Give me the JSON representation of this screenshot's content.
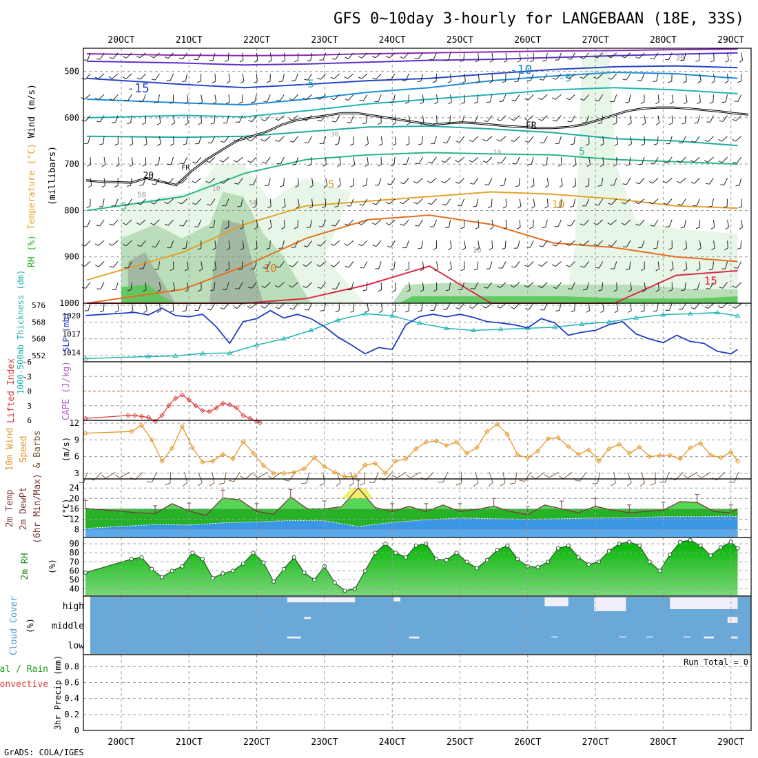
{
  "header": {
    "title": "GFS 0~10day 3-hourly for LANGEBAAN (18E, 33S)",
    "credit": "GrADS: COLA/IGES"
  },
  "x_axis": {
    "dates": [
      "20OCT",
      "21OCT",
      "22OCT",
      "23OCT",
      "24OCT",
      "25OCT",
      "26OCT",
      "27OCT",
      "28OCT",
      "29OCT"
    ]
  },
  "colors": {
    "frame": "#000000",
    "grid": "#999999",
    "rh_green_light": "#e6f5e6",
    "rh_green_mid": "#b4dcb4",
    "rh_gray": "#a0b4a0",
    "rh_green_dark": "#5ac85a",
    "slp": "#1e3cc8",
    "thickness": "#1eb4b4",
    "lifted_index": "#dc3c3c",
    "wind10": "#e69628",
    "barbs": "#7a5a3a",
    "temp_fill_light": "#56d656",
    "temp_fill_dark": "#1eaa1e",
    "temp_hot": "#f0f070",
    "dew_fill": "#3c96e6",
    "dew_fill_light": "#5aaaf0",
    "cloud_fill": "#6aa8d8",
    "cloud_clear": "#f2eef8",
    "rh2m_dark": "#00b400",
    "rh2m_light": "#78d878"
  },
  "chart_data": [
    {
      "type": "line",
      "panel": "upper-air",
      "ylabel_parts": [
        "RH (%)",
        "Temperature (°C)",
        "Wind (m/s)"
      ],
      "ylabel_sub": "(millibars)",
      "yticks": [
        500,
        600,
        700,
        800,
        900,
        1000
      ],
      "ylim": [
        450,
        1000
      ],
      "contour_labels": [
        "-15",
        "-10",
        "-5",
        "-5",
        "-5",
        "5",
        "5",
        "10",
        "10",
        "15",
        "20",
        "FR",
        "FR",
        "10",
        "30",
        "50",
        "50",
        "10",
        "10",
        "30"
      ],
      "freezing_level_mb": [
        735,
        738,
        739,
        740,
        730,
        738,
        745,
        715,
        690,
        670,
        650,
        640,
        630,
        615,
        605,
        600,
        595,
        590,
        590,
        595,
        600,
        605,
        610,
        615,
        612,
        610,
        612,
        615,
        618,
        620,
        622,
        622,
        620,
        615,
        605,
        595,
        585,
        580,
        578,
        578,
        580,
        583,
        586,
        590,
        593
      ]
    },
    {
      "type": "line",
      "panel": "slp-thickness",
      "ylabel_left": "1000-500mb Thickness (dm)",
      "ylabel_right": "SLP (mb)",
      "left_ticks": [
        552,
        560,
        568,
        576
      ],
      "right_ticks": [
        1014,
        1017,
        1020
      ],
      "series": [
        {
          "name": "SLP (mb)",
          "x": [
            0,
            0.2,
            0.4,
            0.6,
            0.8,
            1.0,
            1.2,
            1.4,
            1.6,
            1.8,
            2.0,
            2.2,
            2.4,
            2.6,
            2.8,
            3.0,
            3.2,
            3.4,
            3.6,
            3.8,
            4.0,
            4.2,
            4.4,
            4.6,
            4.8,
            5.0,
            5.2,
            5.4,
            5.6,
            5.8,
            6.0,
            6.2,
            6.4,
            6.6,
            6.8,
            7.0,
            7.2,
            7.4,
            7.6,
            7.8,
            8.0,
            8.2,
            8.4,
            8.6,
            8.8,
            9.0,
            9.1
          ],
          "values": [
            1020.0,
            1020.5,
            1020.1,
            1021.2,
            1020.0,
            1019.8,
            1020.2,
            1018.2,
            1015.5,
            1019.0,
            1019.5,
            1020.8,
            1019.6,
            1020.2,
            1019.5,
            1018.2,
            1016.5,
            1015.2,
            1013.8,
            1014.8,
            1014.5,
            1018.5,
            1019.8,
            1020.2,
            1019.8,
            1020.2,
            1019.7,
            1019.0,
            1018.8,
            1018.5,
            1018.0,
            1019.5,
            1018.8,
            1016.8,
            1017.3,
            1017.6,
            1018.5,
            1019.0,
            1017.0,
            1016.2,
            1015.6,
            1016.8,
            1015.8,
            1015.5,
            1014.2,
            1013.8,
            1014.5
          ]
        },
        {
          "name": "1000-500mb Thickness (dm)",
          "x": [
            0,
            0.4,
            0.8,
            1.2,
            1.6,
            2.0,
            2.4,
            2.8,
            3.2,
            3.6,
            4.0,
            4.4,
            4.8,
            5.2,
            5.6,
            6.0,
            6.4,
            6.8,
            7.2,
            7.6,
            8.0,
            8.4,
            8.8,
            9.1
          ],
          "values": [
            550.5,
            551.5,
            551.8,
            553.0,
            553.2,
            557.0,
            560.0,
            564.0,
            569.0,
            572.0,
            571.0,
            567.5,
            565.0,
            564.0,
            564.5,
            565.0,
            565.5,
            567.0,
            568.0,
            570.0,
            571.5,
            572.0,
            572.5,
            571.0
          ]
        }
      ]
    },
    {
      "type": "line",
      "panel": "stability",
      "ylabel_left": "Lifted Index",
      "ylabel_right": "CAPE (J/kg)",
      "yticks": [
        "-6",
        "-3",
        "0",
        "3",
        "6"
      ],
      "ylim": [
        6,
        -6
      ],
      "series": [
        {
          "name": "Lifted Index",
          "x": [
            0,
            0.1,
            0.2,
            0.3,
            0.4,
            0.5,
            0.6,
            0.7,
            0.8,
            0.9,
            1.0,
            1.1,
            1.2,
            1.3,
            1.4,
            1.5,
            1.6,
            1.7,
            1.8,
            1.9,
            2.0,
            2.05
          ],
          "values": [
            5.6,
            5.0,
            5.0,
            5.2,
            5.4,
            6.2,
            5.0,
            3.0,
            1.5,
            0.8,
            1.8,
            3.0,
            4.0,
            4.2,
            3.5,
            2.5,
            2.8,
            3.4,
            5.0,
            5.6,
            6.2,
            6.5
          ]
        }
      ]
    },
    {
      "type": "line",
      "panel": "wind10m",
      "ylabel_parts": [
        "10m Wind",
        "Speed",
        "& Barbs"
      ],
      "ylabel_right": "(m/s)",
      "yticks": [
        3,
        6,
        9,
        12
      ],
      "ylim": [
        2,
        12.5
      ],
      "series": [
        {
          "name": "10m Wind Speed",
          "x": [
            0,
            0.15,
            0.3,
            0.45,
            0.6,
            0.75,
            0.9,
            1.05,
            1.2,
            1.35,
            1.5,
            1.65,
            1.8,
            1.95,
            2.1,
            2.25,
            2.4,
            2.55,
            2.7,
            2.85,
            3.0,
            3.15,
            3.3,
            3.45,
            3.6,
            3.75,
            3.9,
            4.05,
            4.2,
            4.35,
            4.5,
            4.65,
            4.8,
            4.95,
            5.1,
            5.25,
            5.4,
            5.55,
            5.7,
            5.85,
            6.0,
            6.15,
            6.3,
            6.45,
            6.6,
            6.75,
            6.9,
            7.05,
            7.2,
            7.35,
            7.5,
            7.65,
            7.8,
            7.95,
            8.1,
            8.25,
            8.4,
            8.55,
            8.7,
            8.85,
            9.0,
            9.1
          ],
          "values": [
            10.2,
            10.5,
            11.6,
            9.0,
            5.2,
            7.5,
            11.4,
            7.6,
            5.0,
            5.2,
            6.4,
            5.6,
            8.7,
            6.6,
            4.4,
            3.0,
            3.0,
            3.2,
            3.8,
            5.8,
            4.2,
            3.2,
            2.4,
            2.4,
            4.5,
            4.8,
            3.0,
            5.2,
            5.6,
            7.4,
            8.6,
            8.8,
            8.0,
            8.6,
            6.6,
            7.6,
            10.5,
            11.8,
            10.0,
            6.3,
            5.8,
            7.0,
            9.2,
            9.4,
            7.8,
            6.4,
            7.2,
            5.2,
            7.4,
            8.2,
            6.6,
            7.7,
            6.0,
            6.2,
            6.2,
            5.6,
            7.6,
            8.4,
            6.3,
            5.8,
            6.8,
            5.2
          ]
        }
      ]
    },
    {
      "type": "area",
      "panel": "temperature",
      "ylabel_parts": [
        "2m Temp",
        "2m DewPt",
        "(6hr Min/Max)"
      ],
      "ylabel_right": "(°C)",
      "yticks": [
        8,
        12,
        16,
        20,
        24
      ],
      "ylim": [
        5,
        27.5
      ],
      "series": [
        {
          "name": "2m Temp",
          "x": [
            0,
            0.25,
            0.5,
            0.75,
            1.0,
            1.25,
            1.5,
            1.75,
            2.0,
            2.25,
            2.5,
            2.75,
            3.0,
            3.25,
            3.5,
            3.75,
            4.0,
            4.25,
            4.5,
            4.75,
            5.0,
            5.25,
            5.5,
            5.75,
            6.0,
            6.25,
            6.5,
            6.75,
            7.0,
            7.25,
            7.5,
            7.75,
            8.0,
            8.25,
            8.5,
            8.75,
            9.0,
            9.1
          ],
          "values": [
            16.2,
            14.5,
            14.2,
            18.0,
            15.2,
            13.5,
            20.2,
            19.5,
            15.0,
            14.0,
            20.5,
            16.0,
            16.0,
            16.8,
            24.0,
            16.5,
            15.0,
            17.0,
            15.0,
            17.5,
            15.0,
            15.8,
            17.0,
            15.0,
            13.8,
            17.5,
            16.0,
            14.5,
            17.0,
            15.5,
            14.5,
            15.0,
            15.5,
            18.8,
            18.5,
            15.0,
            14.5,
            16.0
          ]
        },
        {
          "name": "2m DewPt",
          "x": [
            0,
            0.5,
            1.0,
            1.5,
            2.0,
            2.5,
            3.0,
            3.5,
            4.0,
            4.5,
            5.0,
            5.5,
            6.0,
            6.5,
            7.0,
            7.5,
            8.0,
            8.5,
            9.0,
            9.1
          ],
          "values": [
            8.5,
            10.0,
            9.8,
            10.6,
            11.0,
            11.5,
            11.4,
            9.2,
            10.8,
            11.8,
            12.5,
            12.2,
            12.0,
            12.2,
            12.5,
            12.6,
            13.0,
            13.0,
            13.2,
            13.0
          ]
        }
      ]
    },
    {
      "type": "area",
      "panel": "rh2m",
      "ylabel": "2m RH",
      "ylabel_right": "(%)",
      "yticks": [
        40,
        50,
        60,
        70,
        80,
        90
      ],
      "ylim": [
        32,
        97
      ],
      "series": [
        {
          "name": "2m RH",
          "x": [
            0,
            0.15,
            0.3,
            0.45,
            0.6,
            0.75,
            0.9,
            1.05,
            1.2,
            1.35,
            1.5,
            1.65,
            1.8,
            1.95,
            2.1,
            2.25,
            2.4,
            2.55,
            2.7,
            2.85,
            3.0,
            3.15,
            3.3,
            3.45,
            3.6,
            3.75,
            3.9,
            4.05,
            4.2,
            4.35,
            4.5,
            4.65,
            4.8,
            4.95,
            5.1,
            5.25,
            5.4,
            5.55,
            5.7,
            5.85,
            6.0,
            6.15,
            6.3,
            6.45,
            6.6,
            6.75,
            6.9,
            7.05,
            7.2,
            7.35,
            7.5,
            7.65,
            7.8,
            7.95,
            8.1,
            8.25,
            8.4,
            8.55,
            8.7,
            8.85,
            9.0,
            9.1
          ],
          "values": [
            58,
            73,
            75,
            62,
            53,
            60,
            65,
            80,
            73,
            52,
            57,
            60,
            68,
            80,
            69,
            48,
            62,
            75,
            58,
            50,
            65,
            47,
            38,
            40,
            60,
            80,
            90,
            80,
            75,
            88,
            90,
            73,
            72,
            80,
            70,
            63,
            72,
            83,
            88,
            73,
            65,
            64,
            70,
            85,
            88,
            75,
            67,
            70,
            82,
            90,
            92,
            88,
            70,
            60,
            78,
            92,
            94,
            88,
            77,
            86,
            92,
            85
          ]
        }
      ]
    },
    {
      "type": "heatmap",
      "panel": "cloud-cover",
      "ylabel": "Cloud Cover",
      "ylabel_right": "(%)",
      "rows": [
        "high",
        "middle",
        "low"
      ],
      "cells": [
        {
          "row": "high",
          "x0": 2.45,
          "x1": 3.45,
          "value": 75
        },
        {
          "row": "high",
          "x0": 4.02,
          "x1": 4.12,
          "value": 80
        },
        {
          "row": "high",
          "x0": 6.25,
          "x1": 6.6,
          "value": 55
        },
        {
          "row": "high",
          "x0": 6.98,
          "x1": 7.45,
          "value": 30
        },
        {
          "row": "high",
          "x0": 8.1,
          "x1": 9.1,
          "value": 40
        },
        {
          "row": "middle",
          "x0": 2.7,
          "x1": 2.8,
          "value": 90
        },
        {
          "row": "middle",
          "x0": 8.95,
          "x1": 9.1,
          "value": 70
        },
        {
          "row": "low",
          "x0": 2.45,
          "x1": 2.65,
          "value": 90
        },
        {
          "row": "low",
          "x0": 4.25,
          "x1": 4.4,
          "value": 90
        },
        {
          "row": "low",
          "x0": 6.35,
          "x1": 6.45,
          "value": 95
        },
        {
          "row": "low",
          "x0": 7.35,
          "x1": 7.45,
          "value": 95
        },
        {
          "row": "low",
          "x0": 7.75,
          "x1": 7.85,
          "value": 95
        },
        {
          "row": "low",
          "x0": 8.3,
          "x1": 8.4,
          "value": 95
        },
        {
          "row": "low",
          "x0": 8.6,
          "x1": 8.75,
          "value": 90
        },
        {
          "row": "low",
          "x0": 9.0,
          "x1": 9.1,
          "value": 90
        }
      ]
    },
    {
      "type": "bar",
      "panel": "precip",
      "ylabel_parts": [
        "Total / Rain",
        "Convective"
      ],
      "ylabel_right": "3hr Precip (mm)",
      "yticks": [
        "0",
        "0.2",
        "0.4",
        "0.6",
        "0.8"
      ],
      "ylim": [
        0,
        0.95
      ],
      "annotation": "Run Total = 0",
      "values": []
    }
  ]
}
